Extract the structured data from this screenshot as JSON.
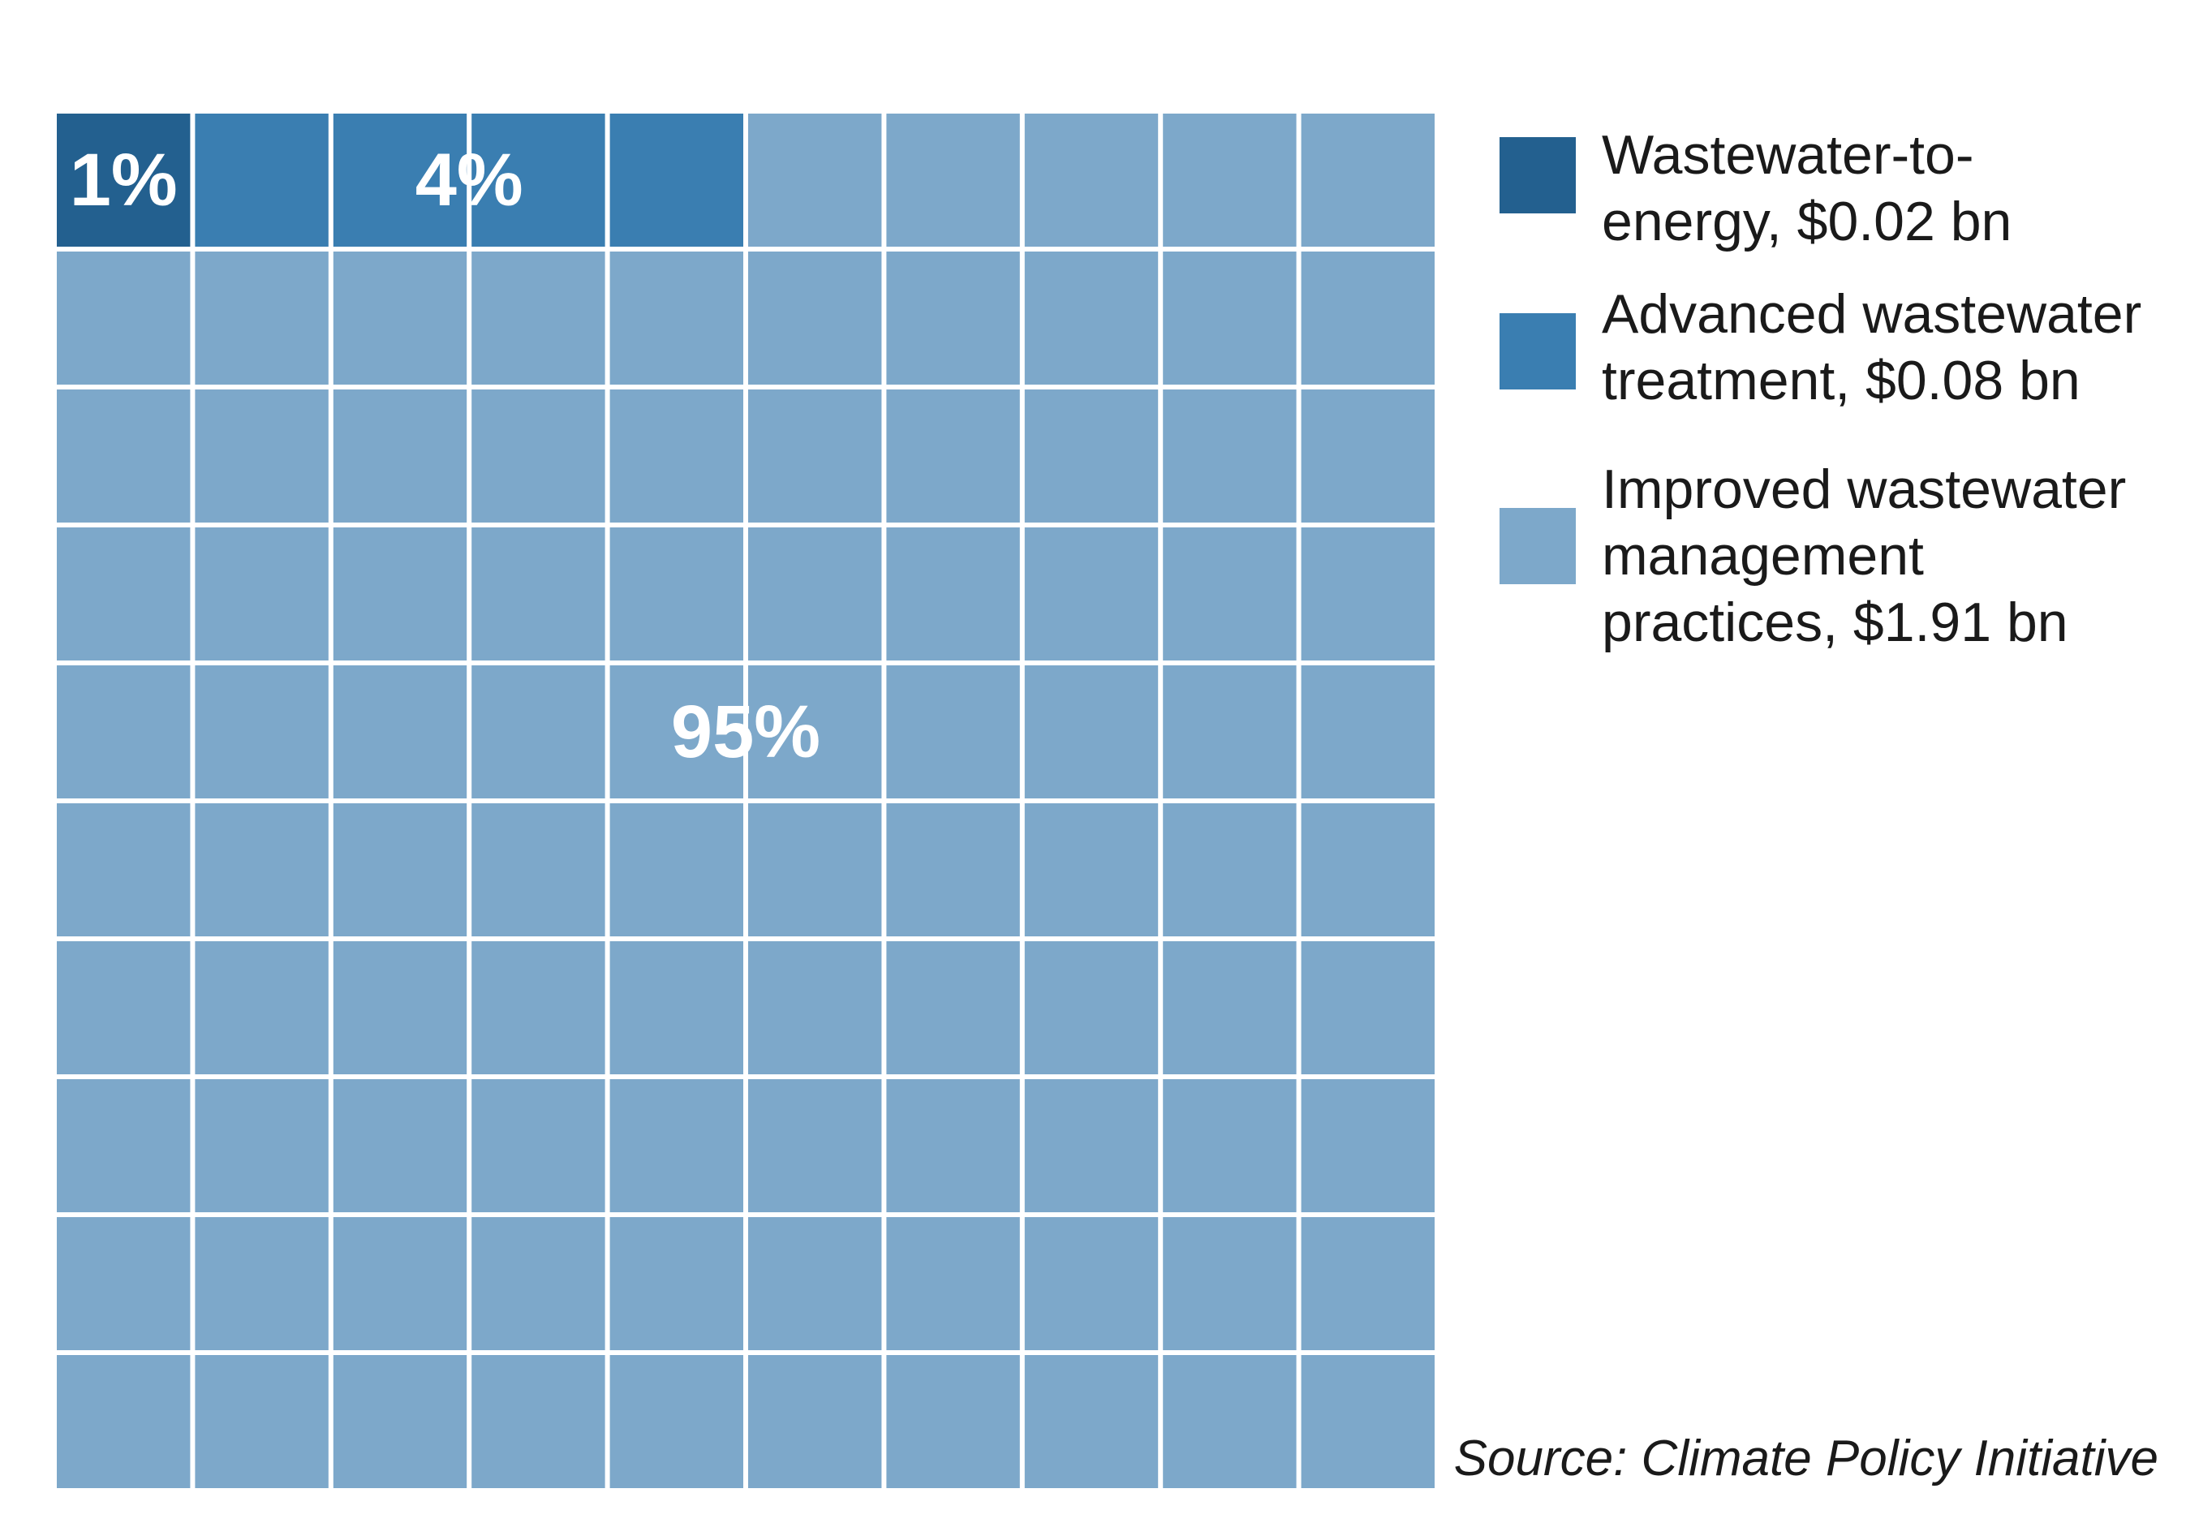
{
  "chart_data": {
    "type": "waffle",
    "grid": {
      "rows": 10,
      "cols": 10
    },
    "unit": "bn USD",
    "series": [
      {
        "name": "Wastewater-to-energy",
        "label": "Wastewater-to-\nenergy, $0.02 bn",
        "value": 0.02,
        "percent": 1,
        "percent_label": "1%",
        "cells": 1,
        "color": "#23608f"
      },
      {
        "name": "Advanced wastewater treatment",
        "label": "Advanced wastewater\ntreatment, $0.08 bn",
        "value": 0.08,
        "percent": 4,
        "percent_label": "4%",
        "cells": 4,
        "color": "#3a7eb1"
      },
      {
        "name": "Improved wastewater management practices",
        "label": "Improved wastewater\nmanagement\npractices, $1.91 bn",
        "value": 1.91,
        "percent": 95,
        "percent_label": "95%",
        "cells": 95,
        "color": "#7da8ca"
      }
    ],
    "legend_position": "right",
    "source": "Source: Climate Policy Initiative"
  }
}
